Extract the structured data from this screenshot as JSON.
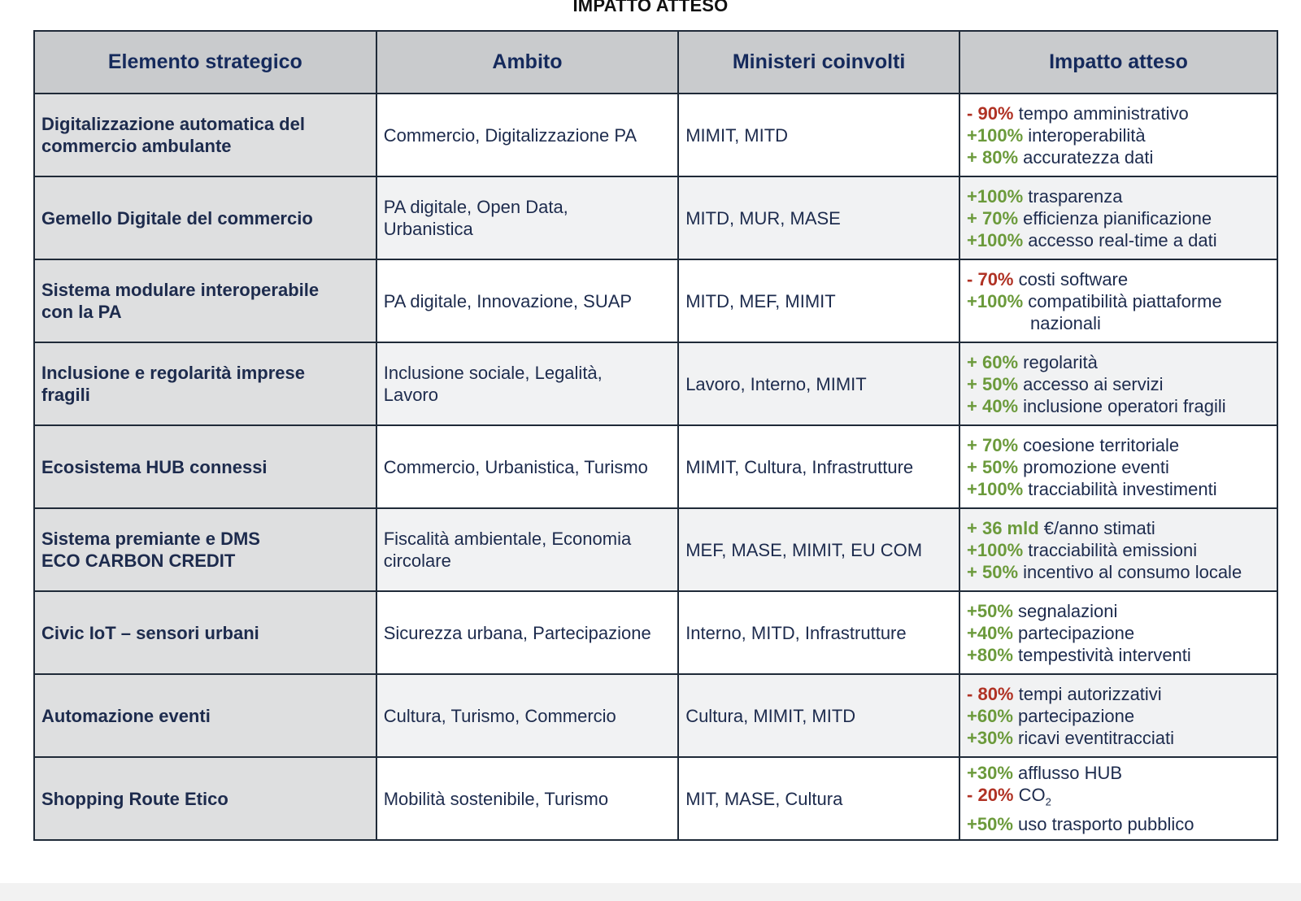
{
  "title": "IMPATTO ATTESO",
  "headers": [
    "Elemento strategico",
    "Ambito",
    "Ministeri coinvolti",
    "Impatto atteso"
  ],
  "colors": {
    "positive": "#6b9a3b",
    "negative": "#b03224",
    "text": "#1d2b4d",
    "header_bg": "#c9cbcd"
  },
  "rows": [
    {
      "element": [
        "Digitalizzazione automatica del",
        "commercio ambulante"
      ],
      "ambito": [
        "Commercio, Digitalizzazione PA"
      ],
      "ministeri": "MIMIT, MITD",
      "impacts": [
        {
          "sign": "- ",
          "value": "90%",
          "text": "tempo amministrativo",
          "dir": "down"
        },
        {
          "sign": "+",
          "value": "100%",
          "text": "interoperabilità",
          "dir": "up"
        },
        {
          "sign": "+ ",
          "value": "80%",
          "text": "accuratezza dati",
          "dir": "up"
        }
      ]
    },
    {
      "element": [
        "Gemello Digitale del commercio"
      ],
      "ambito": [
        "PA digitale, Open Data,",
        "Urbanistica"
      ],
      "ministeri": "MITD, MUR, MASE",
      "impacts": [
        {
          "sign": "+",
          "value": "100%",
          "text": "trasparenza",
          "dir": "up"
        },
        {
          "sign": "+ ",
          "value": "70%",
          "text": "efficienza pianificazione",
          "dir": "up"
        },
        {
          "sign": "+",
          "value": "100%",
          "text": "accesso real-time a dati",
          "dir": "up"
        }
      ]
    },
    {
      "element": [
        "Sistema modulare interoperabile",
        "con la PA"
      ],
      "ambito": [
        "PA digitale, Innovazione, SUAP"
      ],
      "ministeri": "MITD, MEF, MIMIT",
      "impacts": [
        {
          "sign": "- ",
          "value": "70%",
          "text": "costi software",
          "dir": "down"
        },
        {
          "sign": "+",
          "value": "100%",
          "text": "compatibilità piattaforme",
          "dir": "up"
        },
        {
          "sign": "",
          "value": "",
          "text": "nazionali",
          "dir": "cont"
        }
      ]
    },
    {
      "element": [
        "Inclusione e regolarità imprese",
        "fragili"
      ],
      "ambito": [
        "Inclusione sociale, Legalità,",
        "Lavoro"
      ],
      "ministeri": "Lavoro, Interno, MIMIT",
      "impacts": [
        {
          "sign": "+ ",
          "value": "60%",
          "text": "regolarità",
          "dir": "up"
        },
        {
          "sign": "+ ",
          "value": "50%",
          "text": "accesso ai servizi",
          "dir": "up"
        },
        {
          "sign": "+ ",
          "value": "40%",
          "text": "inclusione operatori fragili",
          "dir": "up"
        }
      ]
    },
    {
      "element": [
        "Ecosistema HUB connessi"
      ],
      "ambito": [
        "Commercio, Urbanistica, Turismo"
      ],
      "ministeri": "MIMIT, Cultura, Infrastrutture",
      "impacts": [
        {
          "sign": "+ ",
          "value": "70%",
          "text": "coesione territoriale",
          "dir": "up"
        },
        {
          "sign": "+ ",
          "value": "50%",
          "text": "promozione eventi",
          "dir": "up"
        },
        {
          "sign": "+",
          "value": "100%",
          "text": "tracciabilità investimenti",
          "dir": "up"
        }
      ]
    },
    {
      "element": [
        "Sistema premiante e DMS",
        "ECO CARBON CREDIT"
      ],
      "ambito": [
        "Fiscalità ambientale, Economia",
        "circolare"
      ],
      "ministeri": "MEF, MASE, MIMIT, EU COM",
      "impacts": [
        {
          "sign": "+ ",
          "value": "36 mld",
          "text": "€/anno stimati",
          "dir": "up"
        },
        {
          "sign": "+",
          "value": "100%",
          "text": "tracciabilità emissioni",
          "dir": "up"
        },
        {
          "sign": "+ ",
          "value": "50%",
          "text": "incentivo al consumo locale",
          "dir": "up"
        }
      ]
    },
    {
      "element": [
        "Civic IoT – sensori urbani"
      ],
      "ambito": [
        "Sicurezza urbana, Partecipazione"
      ],
      "ministeri": "Interno, MITD, Infrastrutture",
      "impacts": [
        {
          "sign": "+",
          "value": "50%",
          "text": "segnalazioni",
          "dir": "up"
        },
        {
          "sign": "+",
          "value": "40%",
          "text": "partecipazione",
          "dir": "up"
        },
        {
          "sign": "+",
          "value": "80%",
          "text": "tempestività interventi",
          "dir": "up"
        }
      ]
    },
    {
      "element": [
        "Automazione eventi"
      ],
      "ambito": [
        "Cultura, Turismo, Commercio"
      ],
      "ministeri": "Cultura, MIMIT, MITD",
      "impacts": [
        {
          "sign": "- ",
          "value": "80%",
          "text": "tempi autorizzativi",
          "dir": "down"
        },
        {
          "sign": "+",
          "value": "60%",
          "text": "partecipazione",
          "dir": "up"
        },
        {
          "sign": "+",
          "value": "30%",
          "text": "ricavi eventitracciati",
          "dir": "up"
        }
      ]
    },
    {
      "element": [
        "Shopping Route Etico"
      ],
      "ambito": [
        "Mobilità sostenibile, Turismo"
      ],
      "ministeri": "MIT, MASE, Cultura",
      "impacts": [
        {
          "sign": "+",
          "value": "30%",
          "text": "afflusso HUB",
          "dir": "up"
        },
        {
          "sign": "- ",
          "value": "20%",
          "text": "CO",
          "sub": "2",
          "dir": "down"
        },
        {
          "sign": "+",
          "value": "50%",
          "text": "uso trasporto pubblico",
          "dir": "up"
        }
      ]
    }
  ]
}
